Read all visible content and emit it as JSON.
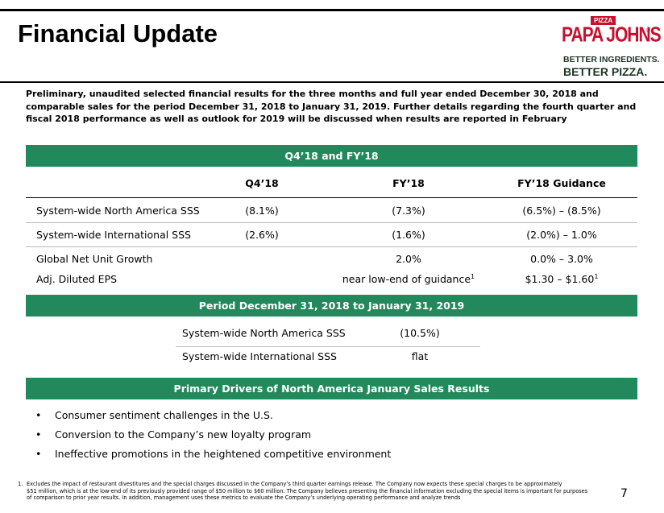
{
  "header": {
    "title": "Financial Update",
    "logo": {
      "top": "PIZZA",
      "brand": "PAPA JOHNS",
      "mark": "®",
      "line1": "BETTER INGREDIENTS.",
      "line2": "BETTER PIZZA."
    }
  },
  "intro": "Preliminary, unaudited selected financial results for the three months and full year ended December 30, 2018 and comparable sales for the period December 31, 2018 to January 31, 2019. Further details regarding the fourth quarter and fiscal 2018 performance as well as outlook for 2019 will be discussed when results are reported in February",
  "table1": {
    "title": "Q4’18 and FY’18",
    "columns": [
      "Q4’18",
      "FY’18",
      "FY’18 Guidance"
    ],
    "rows": [
      {
        "label": "System-wide North America SSS",
        "q4": "(8.1%)",
        "fy": "(7.3%)",
        "guidance": "(6.5%) – (8.5%)"
      },
      {
        "label": "System-wide International SSS",
        "q4": "(2.6%)",
        "fy": "(1.6%)",
        "guidance": "(2.0%) – 1.0%"
      },
      {
        "label": "Global Net Unit Growth",
        "q4": null,
        "fy": "2.0%",
        "guidance": "0.0% – 3.0%"
      },
      {
        "label": "Adj. Diluted EPS",
        "q4": null,
        "fy": "near low-end of guidance",
        "fy_sup": "1",
        "guidance": "$1.30 – $1.60",
        "guidance_sup": "1"
      }
    ]
  },
  "table2": {
    "title": "Period December 31, 2018 to January 31, 2019",
    "rows": [
      {
        "label": "System-wide North America SSS",
        "value": "(10.5%)"
      },
      {
        "label": "System-wide International SSS",
        "value": "flat"
      }
    ]
  },
  "drivers": {
    "title": "Primary Drivers of North America January Sales Results",
    "bullets": [
      "Consumer sentiment challenges in the U.S.",
      "Conversion to the Company’s new loyalty program",
      "Ineffective promotions in the heightened competitive environment"
    ]
  },
  "footnote": {
    "marker": "1.",
    "lines": [
      "Excludes the impact of restaurant divestitures and the special charges discussed in the Company’s third quarter earnings release. The Company now expects these special charges to be approximately",
      "$51 million, which is at the low-end of its previously provided range of $50 million to $60 million. The Company believes presenting the financial information excluding the special items is important for purposes",
      "of comparison to prior year results.  In addition, management uses these metrics to evaluate the Company’s underlying operating performance and analyze trends"
    ]
  },
  "page_number": "7"
}
